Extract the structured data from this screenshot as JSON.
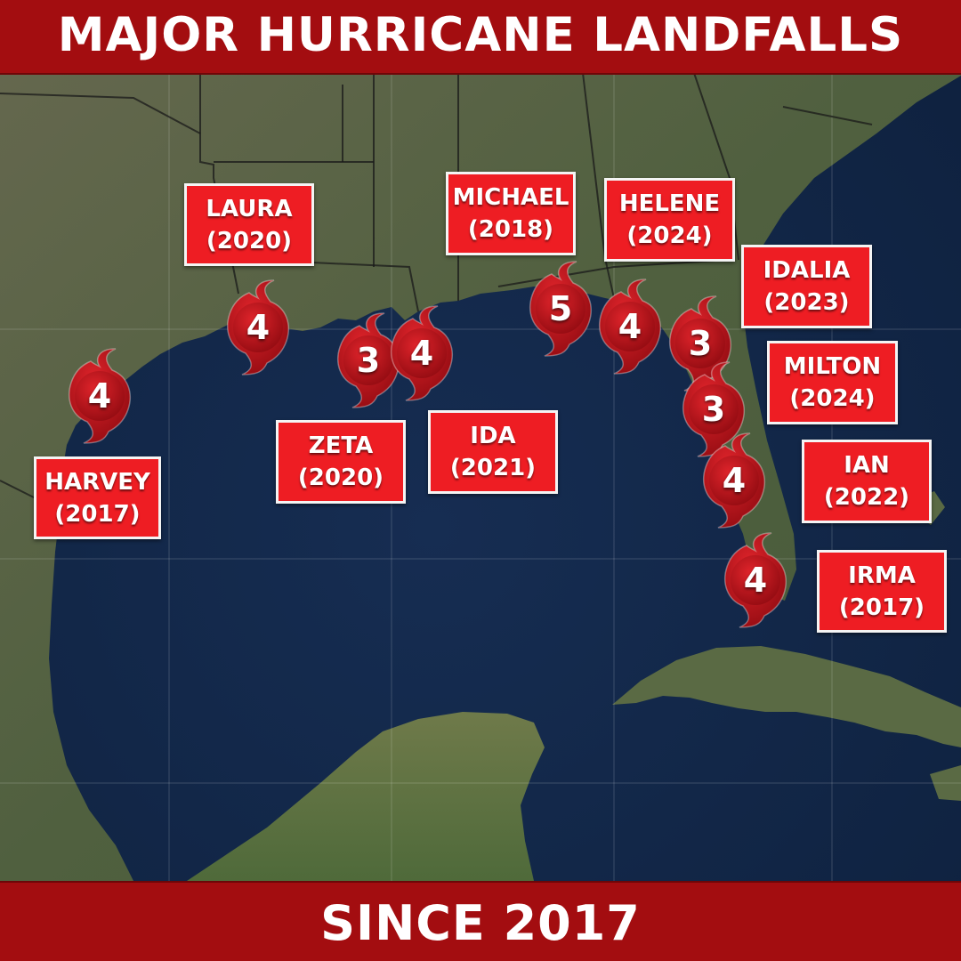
{
  "title": "MAJOR HURRICANE LANDFALLS",
  "subtitle": "SINCE 2017",
  "colors": {
    "banner": "#a30d10",
    "label_fill": "#ee1d23",
    "label_border": "#f4f4f4",
    "storm_symbol": "#c8141b",
    "water": "#13294b",
    "land": "#56604a"
  },
  "icon": "hurricane-symbol-icon",
  "hurricanes": [
    {
      "name": "HARVEY",
      "year": "(2017)",
      "category": "4"
    },
    {
      "name": "LAURA",
      "year": "(2020)",
      "category": "4"
    },
    {
      "name": "ZETA",
      "year": "(2020)",
      "category": "3"
    },
    {
      "name": "IDA",
      "year": "(2021)",
      "category": "4"
    },
    {
      "name": "MICHAEL",
      "year": "(2018)",
      "category": "5"
    },
    {
      "name": "HELENE",
      "year": "(2024)",
      "category": "4"
    },
    {
      "name": "IDALIA",
      "year": "(2023)",
      "category": "3"
    },
    {
      "name": "MILTON",
      "year": "(2024)",
      "category": "3"
    },
    {
      "name": "IAN",
      "year": "(2022)",
      "category": "4"
    },
    {
      "name": "IRMA",
      "year": "(2017)",
      "category": "4"
    }
  ]
}
